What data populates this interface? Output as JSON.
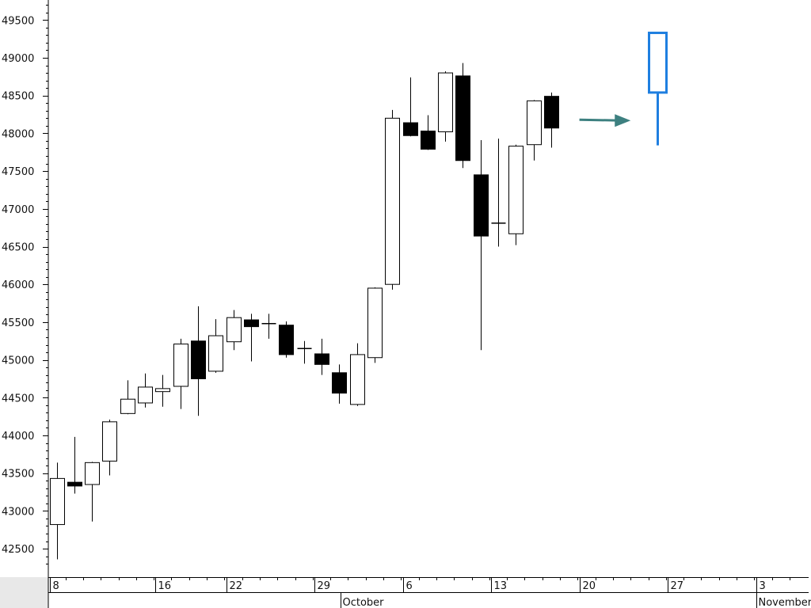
{
  "chart_data": {
    "type": "candlestick",
    "title": "",
    "ylim": [
      42300,
      49800
    ],
    "y_ticks": [
      42500,
      43000,
      43500,
      44000,
      44500,
      45000,
      45500,
      46000,
      46500,
      47000,
      47500,
      48000,
      48500,
      49000,
      49500
    ],
    "x_tick_labels": [
      {
        "label": "8",
        "day_index": 0
      },
      {
        "label": "16",
        "day_index": 6
      },
      {
        "label": "22",
        "day_index": 10
      },
      {
        "label": "29",
        "day_index": 15
      },
      {
        "label": "6",
        "day_index": 20
      },
      {
        "label": "13",
        "day_index": 25
      },
      {
        "label": "20",
        "day_index": 30
      },
      {
        "label": "27",
        "day_index": 35
      },
      {
        "label": "3",
        "day_index": 40
      }
    ],
    "month_labels": [
      {
        "label": "October",
        "day_index": 16.5
      },
      {
        "label": "November",
        "day_index": 40
      }
    ],
    "candles": [
      {
        "day_index": 0,
        "open": 42820,
        "high": 43640,
        "low": 42360,
        "close": 43430
      },
      {
        "day_index": 1,
        "open": 43380,
        "high": 43980,
        "low": 43230,
        "close": 43330
      },
      {
        "day_index": 2,
        "open": 43350,
        "high": 43650,
        "low": 42860,
        "close": 43640
      },
      {
        "day_index": 3,
        "open": 43660,
        "high": 44210,
        "low": 43470,
        "close": 44180
      },
      {
        "day_index": 4,
        "open": 44290,
        "high": 44730,
        "low": 44280,
        "close": 44480
      },
      {
        "day_index": 5,
        "open": 44430,
        "high": 44820,
        "low": 44370,
        "close": 44640
      },
      {
        "day_index": 6,
        "open": 44580,
        "high": 44800,
        "low": 44380,
        "close": 44620
      },
      {
        "day_index": 7,
        "open": 44650,
        "high": 45280,
        "low": 44350,
        "close": 45210
      },
      {
        "day_index": 8,
        "open": 45250,
        "high": 45710,
        "low": 44260,
        "close": 44750
      },
      {
        "day_index": 9,
        "open": 44850,
        "high": 45540,
        "low": 44830,
        "close": 45320
      },
      {
        "day_index": 10,
        "open": 45240,
        "high": 45660,
        "low": 45130,
        "close": 45560
      },
      {
        "day_index": 11,
        "open": 45530,
        "high": 45610,
        "low": 44980,
        "close": 45440
      },
      {
        "day_index": 12,
        "open": 45480,
        "high": 45610,
        "low": 45280,
        "close": 45470
      },
      {
        "day_index": 13,
        "open": 45460,
        "high": 45510,
        "low": 45030,
        "close": 45070
      },
      {
        "day_index": 14,
        "open": 45150,
        "high": 45250,
        "low": 44950,
        "close": 45150
      },
      {
        "day_index": 15,
        "open": 45080,
        "high": 45280,
        "low": 44800,
        "close": 44940
      },
      {
        "day_index": 16,
        "open": 44830,
        "high": 44940,
        "low": 44420,
        "close": 44560
      },
      {
        "day_index": 17,
        "open": 44410,
        "high": 45220,
        "low": 44390,
        "close": 45070
      },
      {
        "day_index": 18,
        "open": 45030,
        "high": 45960,
        "low": 44960,
        "close": 45950
      },
      {
        "day_index": 19,
        "open": 46000,
        "high": 48310,
        "low": 45930,
        "close": 48200
      },
      {
        "day_index": 20,
        "open": 48140,
        "high": 48740,
        "low": 47960,
        "close": 47970
      },
      {
        "day_index": 21,
        "open": 48030,
        "high": 48240,
        "low": 47780,
        "close": 47790
      },
      {
        "day_index": 22,
        "open": 48020,
        "high": 48820,
        "low": 47890,
        "close": 48800
      },
      {
        "day_index": 23,
        "open": 48760,
        "high": 48930,
        "low": 47540,
        "close": 47640
      },
      {
        "day_index": 24,
        "open": 47450,
        "high": 47910,
        "low": 45130,
        "close": 46640
      },
      {
        "day_index": 25,
        "open": 46800,
        "high": 47930,
        "low": 46500,
        "close": 46810
      },
      {
        "day_index": 26,
        "open": 46670,
        "high": 47850,
        "low": 46520,
        "close": 47830
      },
      {
        "day_index": 27,
        "open": 47850,
        "high": 48440,
        "low": 47640,
        "close": 48430
      },
      {
        "day_index": 28,
        "open": 48490,
        "high": 48540,
        "low": 47810,
        "close": 48070
      }
    ],
    "forecast_candle": {
      "day_index": 34,
      "open": 48540,
      "high": 49330,
      "low": 47840,
      "close": 49330
    },
    "arrow": {
      "from_day_index": 29.6,
      "to_day_index": 32.5,
      "value": 48180
    },
    "colors": {
      "bullish_body": "#ffffff",
      "bearish_body": "#000000",
      "forecast": "#1f7fe0",
      "arrow": "#3d8080"
    }
  }
}
